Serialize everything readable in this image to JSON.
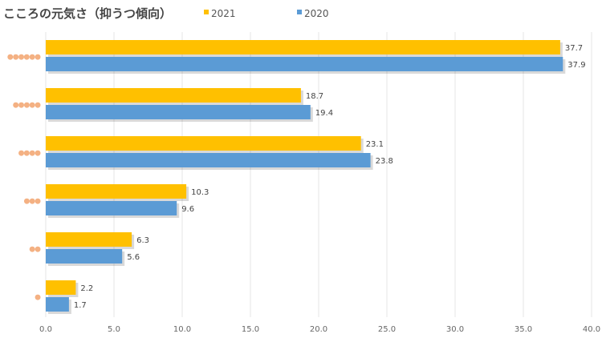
{
  "chart_data": {
    "type": "bar",
    "orientation": "horizontal",
    "title": "こころの元気さ（抑うつ傾向）",
    "legend_position": "top",
    "grid": true,
    "categories": [
      "●●●●●●",
      "●●●●●",
      "●●●●",
      "●●●",
      "●●",
      "●"
    ],
    "category_color": "#f4b183",
    "series": [
      {
        "name": "2021",
        "color": "#ffc000",
        "values": [
          37.7,
          18.7,
          23.1,
          10.3,
          6.3,
          2.2
        ]
      },
      {
        "name": "2020",
        "color": "#5b9bd5",
        "values": [
          37.9,
          19.4,
          23.8,
          9.6,
          5.6,
          1.7
        ]
      }
    ],
    "xlim": [
      0,
      40
    ],
    "xticks": [
      "0.0",
      "5.0",
      "10.0",
      "15.0",
      "20.0",
      "25.0",
      "30.0",
      "35.0",
      "40.0"
    ],
    "data_labels": [
      [
        "37.7",
        "18.7",
        "23.1",
        "10.3",
        "6.3",
        "2.2"
      ],
      [
        "37.9",
        "19.4",
        "23.8",
        "9.6",
        "5.6",
        "1.7"
      ]
    ]
  }
}
